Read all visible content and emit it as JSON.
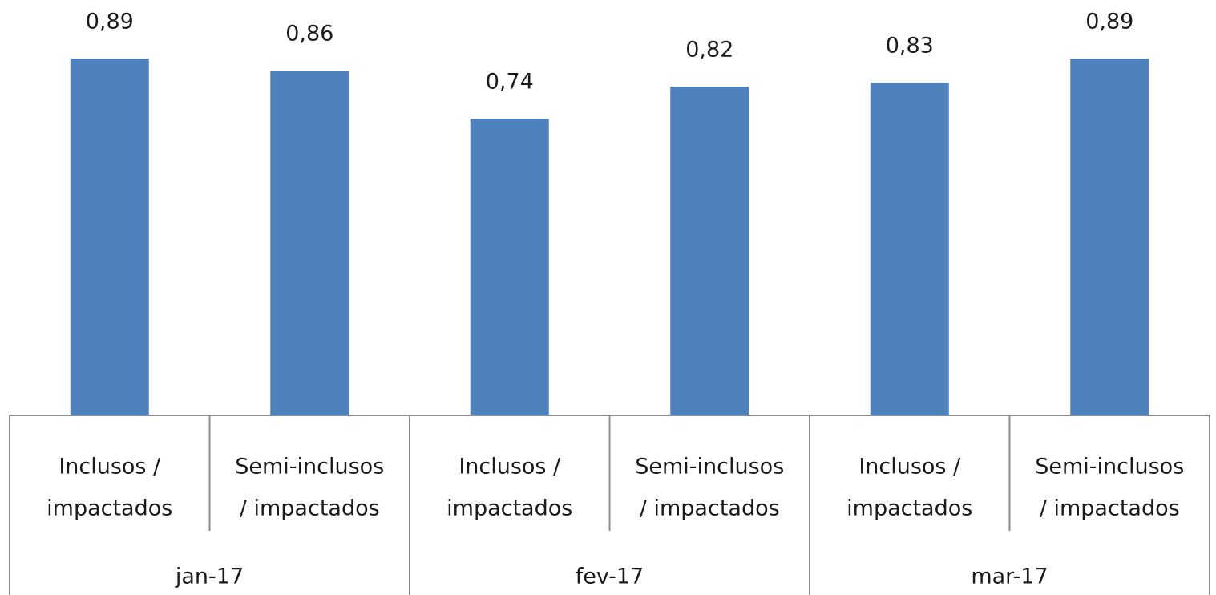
{
  "chart_data": {
    "type": "bar",
    "categories": [
      [
        "Inclusos /",
        "impactados"
      ],
      [
        "Semi-inclusos",
        "/ impactados"
      ],
      [
        "Inclusos /",
        "impactados"
      ],
      [
        "Semi-inclusos",
        "/ impactados"
      ],
      [
        "Inclusos /",
        "impactados"
      ],
      [
        "Semi-inclusos",
        "/ impactados"
      ]
    ],
    "groups": [
      "jan-17",
      "fev-17",
      "mar-17"
    ],
    "values": [
      0.89,
      0.86,
      0.74,
      0.82,
      0.83,
      0.89
    ],
    "value_labels": [
      "0,89",
      "0,86",
      "0,74",
      "0,82",
      "0,83",
      "0,89"
    ],
    "color": "#4f81bd",
    "ylim": [
      0,
      1
    ]
  }
}
